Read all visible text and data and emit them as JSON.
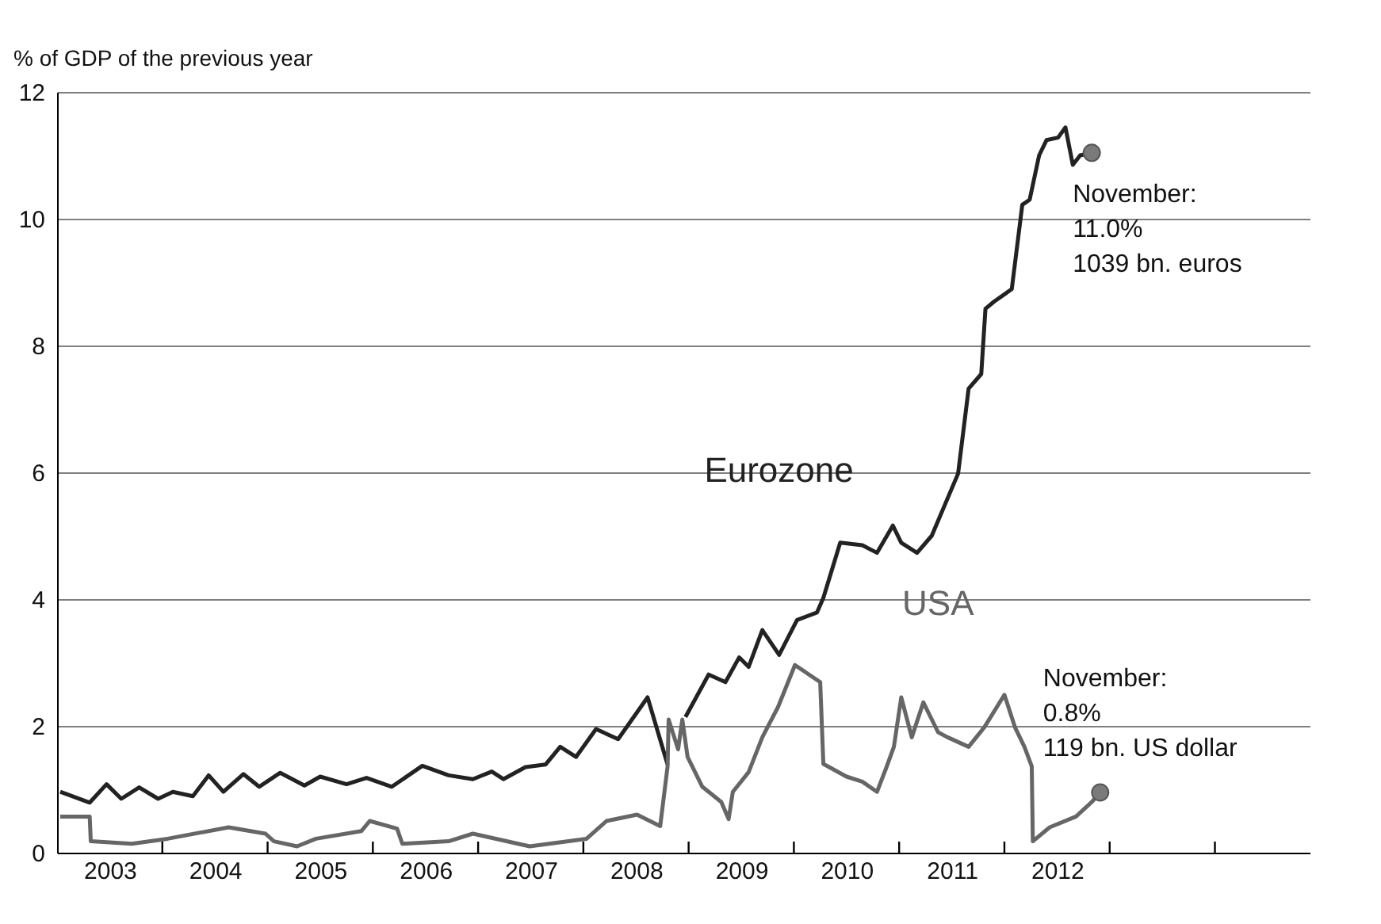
{
  "chart_data": {
    "type": "line",
    "ylabel": "% of GDP of the previous year",
    "xlim": [
      2003,
      2014.9
    ],
    "ylim": [
      0,
      12
    ],
    "yticks": [
      0,
      2,
      4,
      6,
      8,
      10,
      12
    ],
    "xticks": [
      {
        "value": 2003.5,
        "label": "2003"
      },
      {
        "value": 2004,
        "label": null
      },
      {
        "value": 2004.5,
        "label": "2004"
      },
      {
        "value": 2005,
        "label": null
      },
      {
        "value": 2005.5,
        "label": "2005"
      },
      {
        "value": 2006,
        "label": null
      },
      {
        "value": 2006.5,
        "label": "2006"
      },
      {
        "value": 2007,
        "label": null
      },
      {
        "value": 2007.5,
        "label": "2007"
      },
      {
        "value": 2008,
        "label": null
      },
      {
        "value": 2008.5,
        "label": "2008"
      },
      {
        "value": 2009,
        "label": null
      },
      {
        "value": 2009.5,
        "label": "2009"
      },
      {
        "value": 2010,
        "label": null
      },
      {
        "value": 2010.5,
        "label": "2010"
      },
      {
        "value": 2011,
        "label": null
      },
      {
        "value": 2011.5,
        "label": "2011"
      },
      {
        "value": 2012,
        "label": null
      },
      {
        "value": 2012.5,
        "label": "2012"
      },
      {
        "value": 2013,
        "label": null
      },
      {
        "value": 2014,
        "label": null
      }
    ],
    "grid": "y",
    "legend": false,
    "series": [
      {
        "name": "Eurozone",
        "color": "#222222",
        "x": [
          2003.03,
          2003.31,
          2003.47,
          2003.61,
          2003.78,
          2003.96,
          2004.1,
          2004.29,
          2004.44,
          2004.58,
          2004.77,
          2004.92,
          2005.12,
          2005.35,
          2005.5,
          2005.75,
          2005.94,
          2006.18,
          2006.47,
          2006.72,
          2006.95,
          2007.13,
          2007.24,
          2007.45,
          2007.64,
          2007.78,
          2007.93,
          2008.12,
          2008.33,
          2008.61,
          2008.8,
          2008.88,
          2008.97,
          2009.19,
          2009.35,
          2009.48,
          2009.57,
          2009.7,
          2009.86,
          2010.03,
          2010.22,
          2010.28,
          2010.44,
          2010.65,
          2010.79,
          2010.94,
          2011.02,
          2011.17,
          2011.31,
          2011.56,
          2011.66,
          2011.78,
          2011.82,
          2011.9,
          2012.07,
          2012.17,
          2012.24,
          2012.33,
          2012.4,
          2012.51,
          2012.58,
          2012.65,
          2012.72,
          2012.83
        ],
        "values": [
          0.96,
          0.79,
          1.08,
          0.85,
          1.03,
          0.85,
          0.96,
          0.89,
          1.22,
          0.96,
          1.24,
          1.04,
          1.26,
          1.06,
          1.2,
          1.08,
          1.18,
          1.04,
          1.37,
          1.22,
          1.16,
          1.28,
          1.16,
          1.35,
          1.39,
          1.67,
          1.51,
          1.95,
          1.79,
          2.45,
          1.39,
          null,
          2.14,
          2.81,
          2.69,
          3.08,
          2.93,
          3.51,
          3.12,
          3.67,
          3.79,
          4.02,
          4.89,
          4.85,
          4.73,
          5.16,
          4.89,
          4.73,
          5.0,
          5.98,
          7.32,
          7.55,
          8.58,
          8.69,
          8.89,
          10.22,
          10.3,
          11.0,
          11.24,
          11.28,
          11.44,
          10.85,
          11.0,
          11.04
        ]
      },
      {
        "name": "USA",
        "color": "#666666",
        "x": [
          2003.03,
          2003.31,
          2003.32,
          2003.71,
          2004.05,
          2004.63,
          2004.98,
          2005.06,
          2005.28,
          2005.46,
          2005.89,
          2005.97,
          2006.23,
          2006.28,
          2006.72,
          2006.95,
          2007.06,
          2007.49,
          2008.03,
          2008.22,
          2008.51,
          2008.73,
          2008.8,
          2008.81,
          2008.9,
          2008.94,
          2008.99,
          2009.13,
          2009.31,
          2009.38,
          2009.42,
          2009.57,
          2009.7,
          2009.85,
          2010.01,
          2010.25,
          2010.28,
          2010.5,
          2010.65,
          2010.79,
          2010.88,
          2010.95,
          2011.02,
          2011.12,
          2011.23,
          2011.37,
          2011.46,
          2011.66,
          2011.81,
          2012.0,
          2012.1,
          2012.19,
          2012.26,
          2012.27,
          2012.43,
          2012.68,
          2012.83,
          2012.91
        ],
        "values": [
          0.57,
          0.57,
          0.18,
          0.14,
          0.22,
          0.4,
          0.3,
          0.18,
          0.1,
          0.22,
          0.34,
          0.5,
          0.38,
          0.14,
          0.18,
          0.3,
          0.26,
          0.1,
          0.22,
          0.5,
          0.6,
          0.42,
          1.36,
          2.1,
          1.63,
          2.1,
          1.51,
          1.04,
          0.8,
          0.53,
          0.96,
          1.27,
          1.82,
          2.3,
          2.96,
          2.69,
          1.4,
          1.2,
          1.12,
          0.96,
          1.35,
          1.67,
          2.45,
          1.82,
          2.37,
          1.9,
          1.82,
          1.67,
          1.98,
          2.49,
          1.98,
          1.67,
          1.36,
          0.18,
          0.4,
          0.57,
          0.8,
          0.95
        ]
      }
    ],
    "annotations": [
      {
        "text": "November:\n11.0%\n1039 bn. euros",
        "x": 2012.83,
        "y": 11.04
      },
      {
        "text": "November:\n0.8%\n119 bn. US dollar",
        "x": 2012.91,
        "y": 0.95
      }
    ]
  }
}
